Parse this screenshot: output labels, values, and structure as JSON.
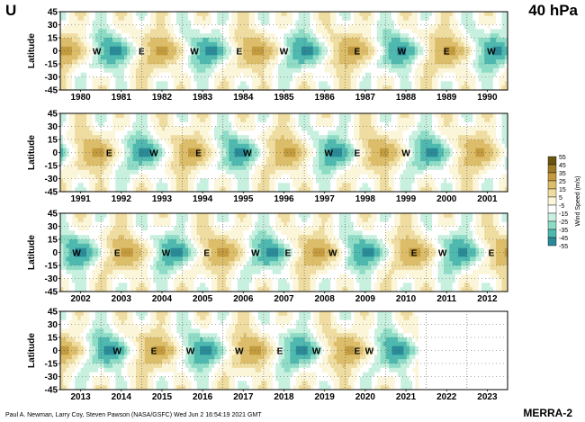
{
  "header": {
    "variable": "U",
    "level": "40 hPa"
  },
  "footer": {
    "credit": "Paul A. Newman, Larry Coy, Steven Pawson (NASA/GSFC) Wed Jun  2 16:54:19 2021 GMT",
    "product": "MERRA-2"
  },
  "colors": {
    "pos": [
      "#fbf6d9",
      "#efdca0",
      "#dcbd6a",
      "#c39a3e",
      "#9c7a26",
      "#6b5412"
    ],
    "neg": [
      "#ffffff",
      "#c8f0df",
      "#8edcc6",
      "#4fb9af",
      "#2a8a98",
      "#176a86",
      "#0e4a73",
      "#07305a"
    ]
  },
  "chart_data": {
    "type": "heatmap",
    "title": "U 40 hPa",
    "ylabel": "Latitude",
    "yticks": [
      45,
      30,
      15,
      0,
      -15,
      -30,
      -45
    ],
    "ylim": [
      -45,
      45
    ],
    "colorbar": {
      "label": "Wind Speed (m/s)",
      "ticks": [
        55,
        45,
        35,
        25,
        15,
        5,
        -5,
        -15,
        -25,
        -35,
        -45,
        -55
      ]
    },
    "panels": [
      {
        "years": [
          "1980",
          "1981",
          "1982",
          "1983",
          "1984",
          "1985",
          "1986",
          "1987",
          "1988",
          "1989",
          "1990"
        ],
        "start_year": 1979.5,
        "end_year": 1990.5,
        "phase_labels": [
          {
            "text": "W",
            "year": 1980.4
          },
          {
            "text": "E",
            "year": 1981.5
          },
          {
            "text": "W",
            "year": 1982.8
          },
          {
            "text": "E",
            "year": 1983.9
          },
          {
            "text": "W",
            "year": 1985.0
          },
          {
            "text": "E",
            "year": 1986.8
          },
          {
            "text": "W",
            "year": 1987.9
          },
          {
            "text": "E",
            "year": 1989.0
          },
          {
            "text": "W",
            "year": 1990.1
          }
        ]
      },
      {
        "years": [
          "1991",
          "1992",
          "1993",
          "1994",
          "1995",
          "1996",
          "1997",
          "1998",
          "1999",
          "2000",
          "2001"
        ],
        "start_year": 1990.5,
        "end_year": 2001.5,
        "phase_labels": [
          {
            "text": "E",
            "year": 1991.7
          },
          {
            "text": "W",
            "year": 1992.8
          },
          {
            "text": "E",
            "year": 1993.9
          },
          {
            "text": "W",
            "year": 1995.1
          },
          {
            "text": "W",
            "year": 1997.1
          },
          {
            "text": "E",
            "year": 1997.8
          },
          {
            "text": "W",
            "year": 1999.0
          }
        ]
      },
      {
        "years": [
          "2002",
          "2003",
          "2004",
          "2005",
          "2006",
          "2007",
          "2008",
          "2009",
          "2010",
          "2011",
          "2012"
        ],
        "start_year": 2001.5,
        "end_year": 2012.5,
        "phase_labels": [
          {
            "text": "W",
            "year": 2001.9
          },
          {
            "text": "E",
            "year": 2002.9
          },
          {
            "text": "W",
            "year": 2004.1
          },
          {
            "text": "E",
            "year": 2005.1
          },
          {
            "text": "W",
            "year": 2006.3
          },
          {
            "text": "E",
            "year": 2007.1
          },
          {
            "text": "W",
            "year": 2008.2
          },
          {
            "text": "E",
            "year": 2010.2
          },
          {
            "text": "W",
            "year": 2010.9
          },
          {
            "text": "E",
            "year": 2012.1
          }
        ]
      },
      {
        "years": [
          "2013",
          "2014",
          "2015",
          "2016",
          "2017",
          "2018",
          "2019",
          "2020",
          "2021",
          "2022",
          "2023"
        ],
        "start_year": 2012.5,
        "end_year": 2023.5,
        "data_end_year": 2021.3,
        "phase_labels": [
          {
            "text": "W",
            "year": 2013.9
          },
          {
            "text": "E",
            "year": 2014.8
          },
          {
            "text": "W",
            "year": 2015.7
          },
          {
            "text": "W",
            "year": 2016.9
          },
          {
            "text": "E",
            "year": 2017.9
          },
          {
            "text": "W",
            "year": 2018.8
          },
          {
            "text": "E",
            "year": 2019.8
          },
          {
            "text": "W",
            "year": 2020.1
          }
        ]
      }
    ]
  }
}
